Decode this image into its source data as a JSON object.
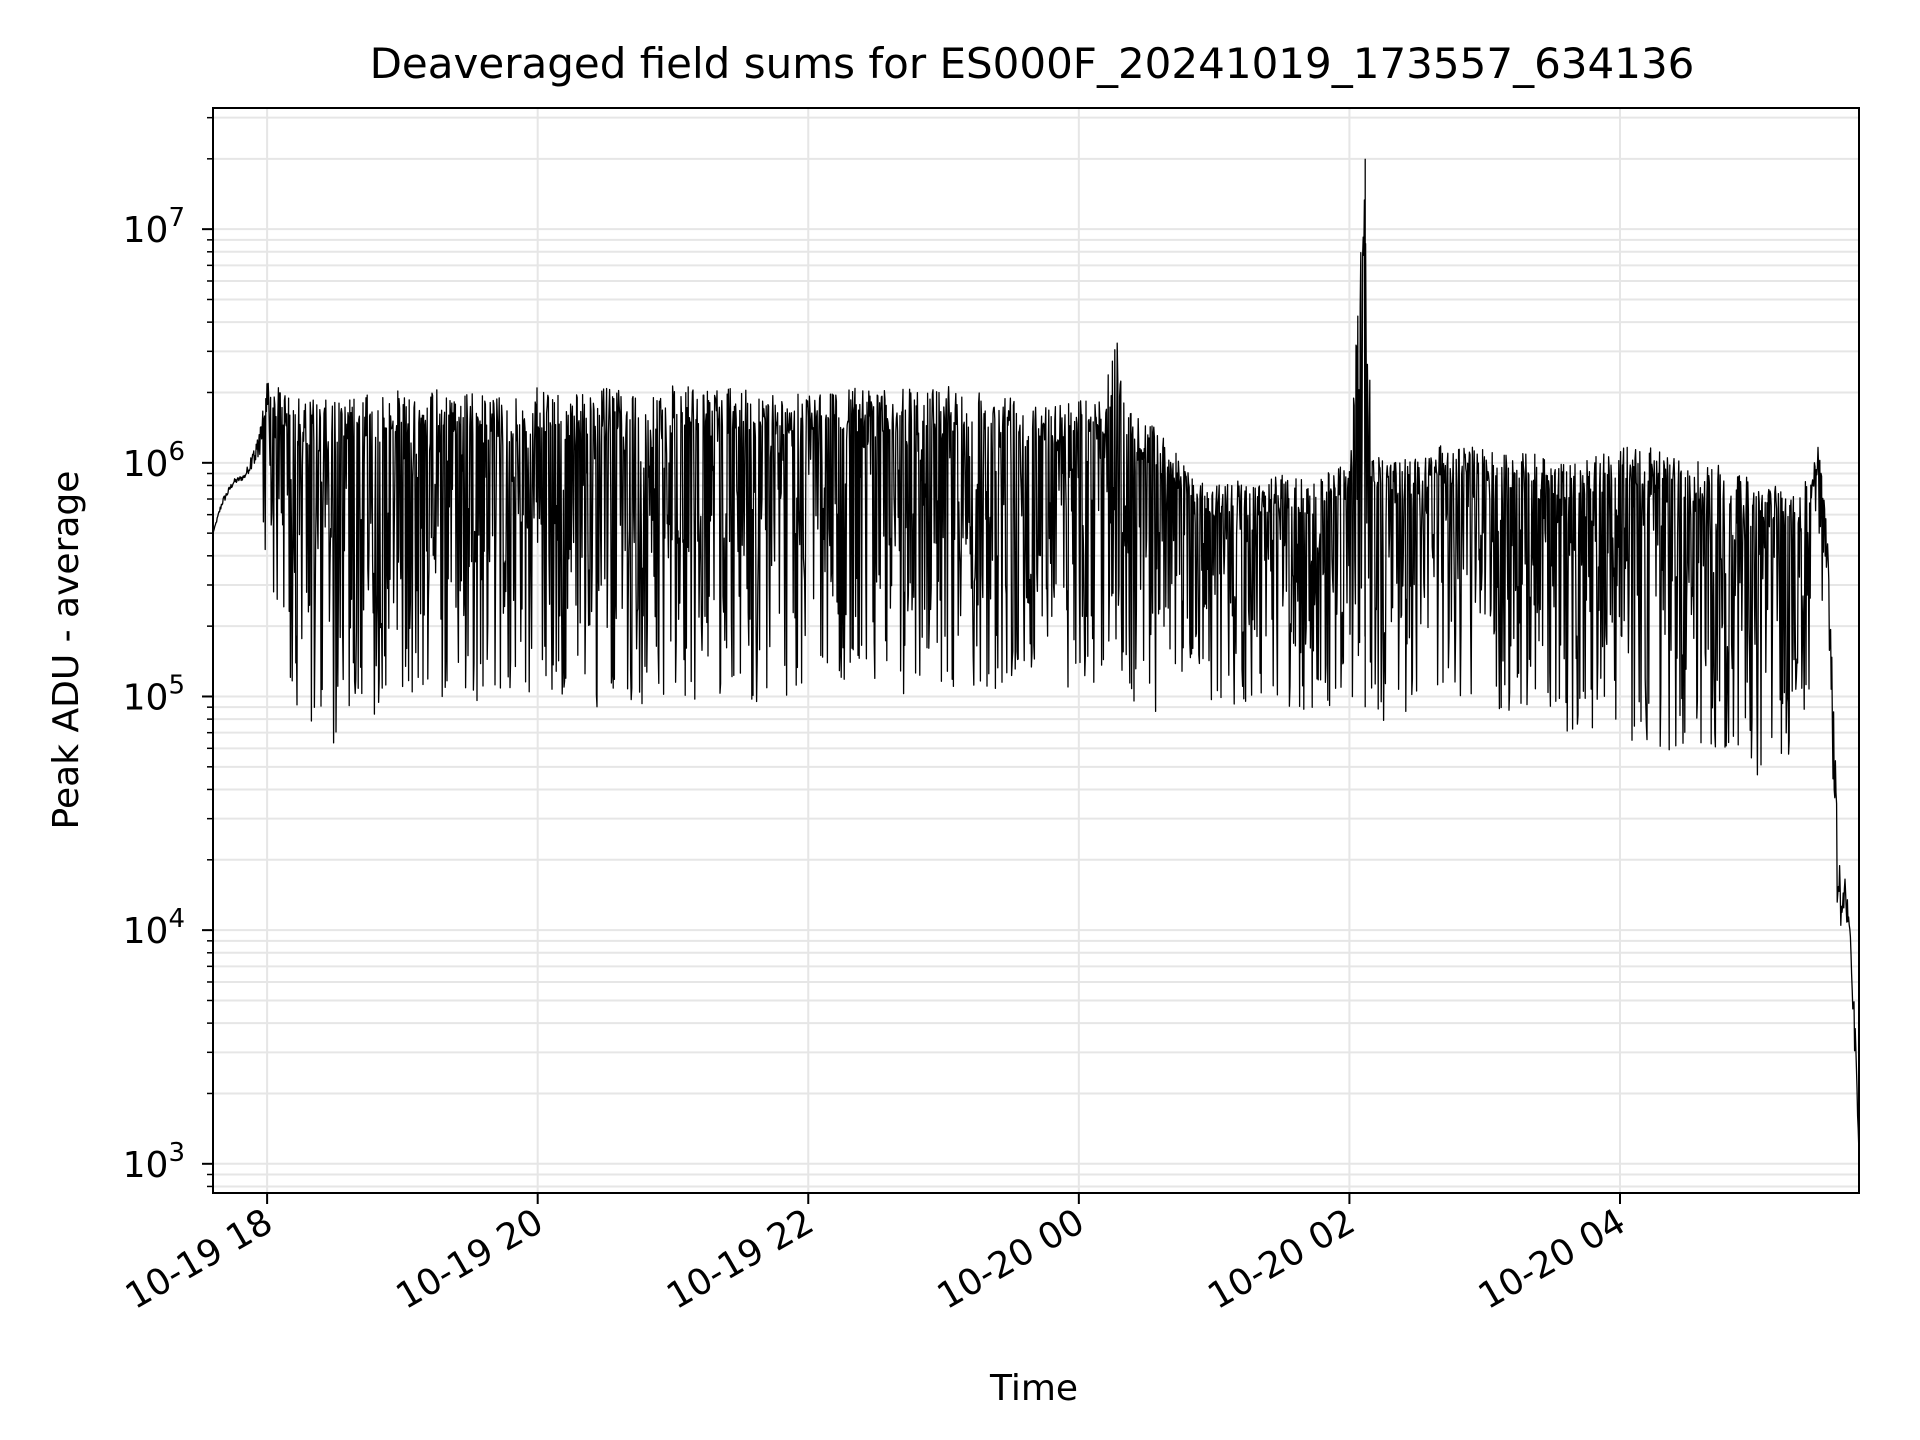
{
  "chart_data": {
    "type": "line",
    "title": "Deaveraged field sums for ES000F_20241019_173557_634136",
    "xlabel": "Time",
    "ylabel": "Peak ADU - average",
    "yscale": "log",
    "ylim": [
      750,
      33000000
    ],
    "xlim": [
      "2024-10-19 17:36",
      "2024-10-20 05:46"
    ],
    "xticks": [
      "10-19 18",
      "10-19 20",
      "10-19 22",
      "10-20 00",
      "10-20 02",
      "10-20 04"
    ],
    "xtick_times": [
      "2024-10-19 18:00",
      "2024-10-19 20:00",
      "2024-10-19 22:00",
      "2024-10-20 00:00",
      "2024-10-20 02:00",
      "2024-10-20 04:00"
    ],
    "ytick_base": "10",
    "ytick_exponents": [
      "3",
      "4",
      "5",
      "6",
      "7"
    ],
    "ytick_values": [
      1000,
      10000,
      100000,
      1000000,
      10000000
    ],
    "grid": true,
    "line_color": "#000000",
    "grid_color": "#e6e6e6",
    "series": [
      {
        "x": [
          "2024-10-19 17:36",
          "2024-10-19 17:40",
          "2024-10-19 17:45",
          "2024-10-19 17:50",
          "2024-10-19 17:55",
          "2024-10-19 18:00",
          "2024-10-19 18:05",
          "2024-10-19 18:10",
          "2024-10-19 18:15",
          "2024-10-19 18:20",
          "2024-10-19 18:25",
          "2024-10-19 18:30",
          "2024-10-19 18:35",
          "2024-10-19 18:40",
          "2024-10-19 18:45",
          "2024-10-19 18:50",
          "2024-10-19 18:55",
          "2024-10-19 19:00",
          "2024-10-19 19:10",
          "2024-10-19 19:20",
          "2024-10-19 19:30",
          "2024-10-19 19:40",
          "2024-10-19 19:50",
          "2024-10-19 20:00",
          "2024-10-19 20:10",
          "2024-10-19 20:20",
          "2024-10-19 20:30",
          "2024-10-19 20:40",
          "2024-10-19 20:50",
          "2024-10-19 21:00",
          "2024-10-19 21:10",
          "2024-10-19 21:20",
          "2024-10-19 21:30",
          "2024-10-19 21:40",
          "2024-10-19 21:50",
          "2024-10-19 22:00",
          "2024-10-19 22:10",
          "2024-10-19 22:20",
          "2024-10-19 22:30",
          "2024-10-19 22:40",
          "2024-10-19 22:50",
          "2024-10-19 23:00",
          "2024-10-19 23:10",
          "2024-10-19 23:20",
          "2024-10-19 23:30",
          "2024-10-19 23:40",
          "2024-10-19 23:50",
          "2024-10-20 00:00",
          "2024-10-20 00:10",
          "2024-10-20 00:17",
          "2024-10-20 00:20",
          "2024-10-20 00:30",
          "2024-10-20 00:40",
          "2024-10-20 00:50",
          "2024-10-20 01:00",
          "2024-10-20 01:10",
          "2024-10-20 01:20",
          "2024-10-20 01:30",
          "2024-10-20 01:40",
          "2024-10-20 01:50",
          "2024-10-20 02:00",
          "2024-10-20 02:07",
          "2024-10-20 02:10",
          "2024-10-20 02:20",
          "2024-10-20 02:30",
          "2024-10-20 02:40",
          "2024-10-20 02:50",
          "2024-10-20 03:00",
          "2024-10-20 03:10",
          "2024-10-20 03:20",
          "2024-10-20 03:30",
          "2024-10-20 03:40",
          "2024-10-20 03:50",
          "2024-10-20 04:00",
          "2024-10-20 04:10",
          "2024-10-20 04:20",
          "2024-10-20 04:30",
          "2024-10-20 04:40",
          "2024-10-20 04:50",
          "2024-10-20 05:00",
          "2024-10-20 05:10",
          "2024-10-20 05:20",
          "2024-10-20 05:28",
          "2024-10-20 05:32",
          "2024-10-20 05:36",
          "2024-10-20 05:38",
          "2024-10-20 05:40",
          "2024-10-20 05:42",
          "2024-10-20 05:44",
          "2024-10-20 05:46"
        ],
        "upper": [
          500000,
          700000,
          850000,
          900000,
          1200000,
          2200000,
          2100000,
          2000000,
          1900000,
          1900000,
          1850000,
          1900000,
          1850000,
          2000000,
          1950000,
          2000000,
          2100000,
          2000000,
          2050000,
          2100000,
          2000000,
          1950000,
          1900000,
          2100000,
          2050000,
          2000000,
          2100000,
          2050000,
          2100000,
          2150000,
          2100000,
          2050000,
          2100000,
          2000000,
          2050000,
          2100000,
          2050000,
          2100000,
          2000000,
          2100000,
          2050000,
          2150000,
          2100000,
          2050000,
          2000000,
          1950000,
          1900000,
          1900000,
          1850000,
          3600000,
          1900000,
          1500000,
          1300000,
          900000,
          800000,
          850000,
          800000,
          900000,
          850000,
          950000,
          1000000,
          20000000,
          1200000,
          1000000,
          1100000,
          1200000,
          1150000,
          1200000,
          1100000,
          1100000,
          1050000,
          1000000,
          1100000,
          1150000,
          1200000,
          1100000,
          1000000,
          1050000,
          900000,
          850000,
          800000,
          750000,
          1200000,
          500000,
          40000,
          15000,
          17000,
          10000,
          5000,
          1100
        ],
        "lower": [
          500000,
          650000,
          800000,
          850000,
          1000000,
          300000,
          200000,
          100000,
          60000,
          55000,
          70000,
          60000,
          65000,
          80000,
          75000,
          90000,
          80000,
          85000,
          90000,
          100000,
          95000,
          90000,
          100000,
          100000,
          90000,
          95000,
          85000,
          90000,
          95000,
          100000,
          90000,
          95000,
          100000,
          90000,
          95000,
          100000,
          95000,
          100000,
          95000,
          100000,
          100000,
          100000,
          105000,
          100000,
          105000,
          110000,
          100000,
          105000,
          110000,
          100000,
          100000,
          80000,
          70000,
          150000,
          90000,
          80000,
          100000,
          90000,
          80000,
          85000,
          90000,
          90000,
          80000,
          70000,
          100000,
          90000,
          95000,
          90000,
          85000,
          90000,
          80000,
          60000,
          70000,
          80000,
          50000,
          60000,
          55000,
          60000,
          50000,
          45000,
          42000,
          45000,
          200000,
          300000,
          13000,
          10000,
          12000,
          8000,
          3000,
          1100
        ]
      }
    ]
  }
}
